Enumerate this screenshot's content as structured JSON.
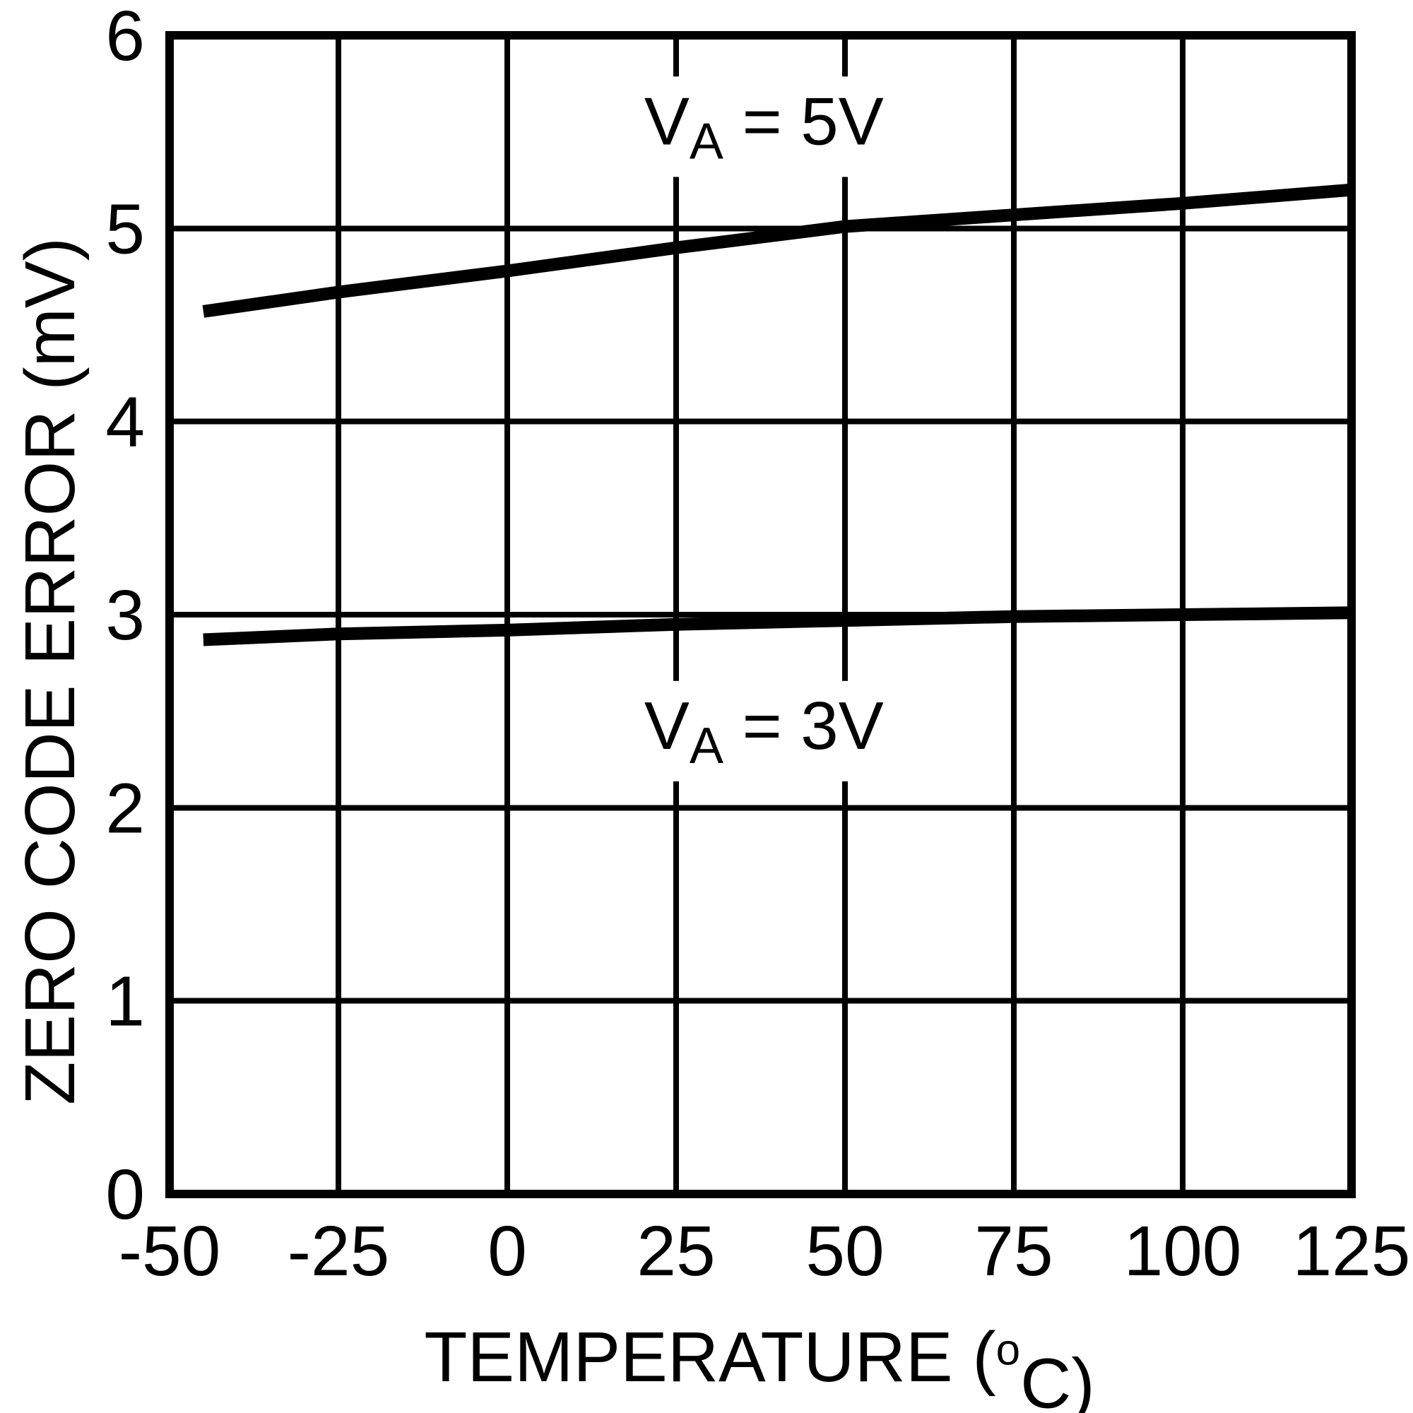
{
  "colors": {
    "ink": "#000000",
    "background": "#ffffff"
  },
  "chart_data": {
    "type": "line",
    "title": "",
    "xlabel": "TEMPERATURE (°C)",
    "xlabel_parts": {
      "pre": "TEMPERATURE (",
      "sup": "o",
      "post": "C)"
    },
    "ylabel": "ZERO CODE ERROR (mV)",
    "xlim": [
      -50,
      125
    ],
    "ylim": [
      0,
      6
    ],
    "xticks": {
      "values": [
        -50,
        -25,
        0,
        25,
        50,
        75,
        100,
        125
      ],
      "labels": [
        "-50",
        "-25",
        "0",
        "25",
        "50",
        "75",
        "100",
        "125"
      ]
    },
    "yticks": {
      "values": [
        0,
        1,
        2,
        3,
        4,
        5,
        6
      ],
      "labels": [
        "0",
        "1",
        "2",
        "3",
        "4",
        "5",
        "6"
      ]
    },
    "grid": true,
    "legend_position": "inline-annotations",
    "series": [
      {
        "name": "VA = 5V",
        "label_parts": {
          "pre": "V",
          "sub": "A",
          "post": " = 5V"
        },
        "annotation_pos": {
          "x": 38,
          "y": 5.56
        },
        "x": [
          -45,
          -25,
          0,
          25,
          50,
          75,
          100,
          125
        ],
        "y": [
          4.57,
          4.67,
          4.78,
          4.9,
          5.01,
          5.07,
          5.13,
          5.2
        ]
      },
      {
        "name": "VA = 3V",
        "label_parts": {
          "pre": "V",
          "sub": "A",
          "post": " = 3V"
        },
        "annotation_pos": {
          "x": 38,
          "y": 2.43
        },
        "x": [
          -45,
          -25,
          0,
          25,
          50,
          75,
          100,
          125
        ],
        "y": [
          2.87,
          2.9,
          2.92,
          2.95,
          2.97,
          2.99,
          3.0,
          3.01
        ]
      }
    ]
  }
}
